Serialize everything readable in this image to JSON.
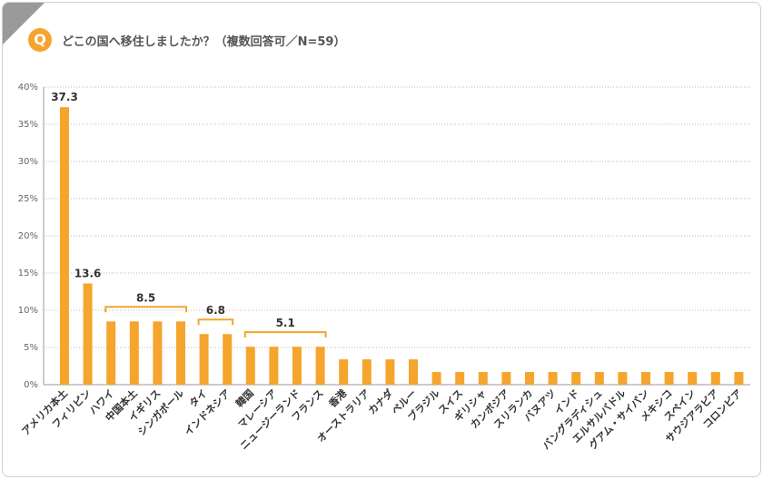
{
  "header": {
    "badge": "Q",
    "title": "どこの国へ移住しましたか？（複数回答可／N=59）"
  },
  "colors": {
    "bar": "#f5a52d",
    "bracket": "#f5a52d",
    "corner": "#9a9a9a",
    "grid": "#bbbbbb"
  },
  "chart_data": {
    "type": "bar",
    "categories": [
      "アメリカ本土",
      "フィリピン",
      "ハワイ",
      "中国本土",
      "イギリス",
      "シンガポール",
      "タイ",
      "インドネシア",
      "韓国",
      "マレーシア",
      "ニュージーランド",
      "フランス",
      "香港",
      "オーストラリア",
      "カナダ",
      "ペルー",
      "ブラジル",
      "スイス",
      "ギリシャ",
      "カンボジア",
      "スリランカ",
      "バヌアツ",
      "インド",
      "バングラディシュ",
      "エルサルバドル",
      "グアム・サイパン",
      "メキシコ",
      "スペイン",
      "サウジアラビア",
      "コロンビア"
    ],
    "values": [
      37.3,
      13.6,
      8.5,
      8.5,
      8.5,
      8.5,
      6.8,
      6.8,
      5.1,
      5.1,
      5.1,
      5.1,
      3.4,
      3.4,
      3.4,
      3.4,
      1.7,
      1.7,
      1.7,
      1.7,
      1.7,
      1.7,
      1.7,
      1.7,
      1.7,
      1.7,
      1.7,
      1.7,
      1.7,
      1.7
    ],
    "ylim": [
      0,
      40
    ],
    "yticks": [
      "0%",
      "5%",
      "10%",
      "15%",
      "20%",
      "25%",
      "30%",
      "35%",
      "40%"
    ],
    "grid": true,
    "annotations": [
      {
        "text": "37.3",
        "from": 0,
        "to": 0
      },
      {
        "text": "13.6",
        "from": 1,
        "to": 1
      },
      {
        "text": "8.5",
        "from": 2,
        "to": 5
      },
      {
        "text": "6.8",
        "from": 6,
        "to": 7
      },
      {
        "text": "5.1",
        "from": 8,
        "to": 11
      }
    ]
  }
}
